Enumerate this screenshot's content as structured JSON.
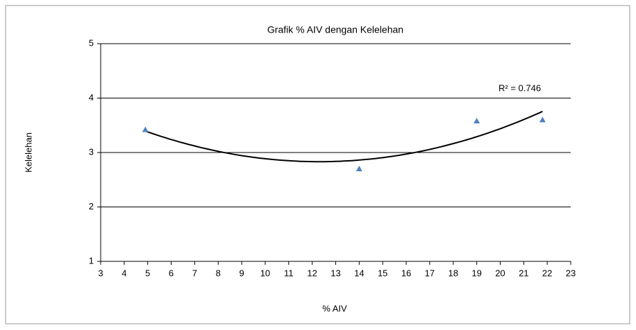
{
  "chart_data": {
    "type": "scatter",
    "title": "Grafik % AIV dengan Kelelehan",
    "x_label": "% AIV",
    "y_label": "Kelelehan",
    "series": [
      {
        "name": "Kelelehan",
        "color": "#4f81bd",
        "x": [
          4.9,
          14,
          19,
          21.8
        ],
        "values": [
          3.42,
          2.7,
          3.58,
          3.6
        ]
      }
    ],
    "trendline": {
      "type": "polynomial",
      "order": 2,
      "color": "#000000",
      "label": "R² = 0.746"
    },
    "xlim": [
      3,
      23
    ],
    "xticks": [
      3,
      4,
      5,
      6,
      7,
      8,
      9,
      10,
      11,
      12,
      13,
      14,
      15,
      16,
      17,
      18,
      19,
      20,
      21,
      22,
      23
    ],
    "ylim": [
      1,
      5
    ],
    "yticks": [
      1,
      2,
      3,
      4,
      5
    ],
    "grid": true
  }
}
